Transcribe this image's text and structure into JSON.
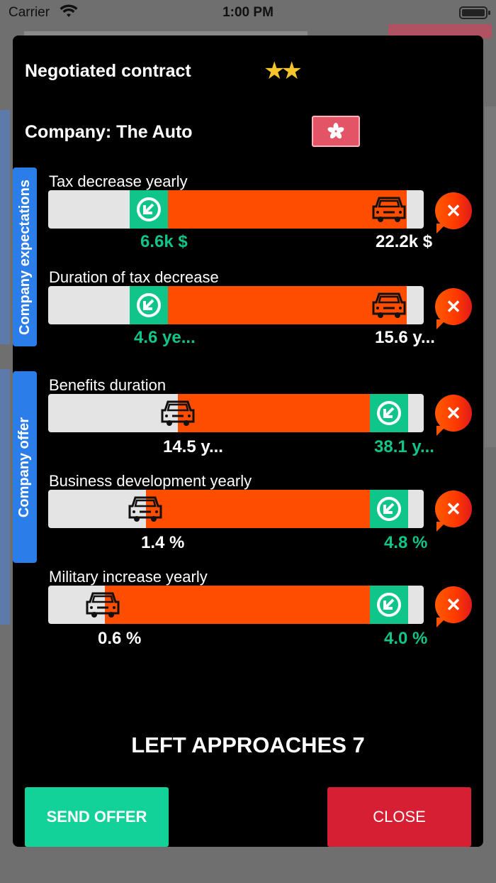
{
  "status_bar": {
    "carrier": "Carrier",
    "time": "1:00 PM"
  },
  "header": {
    "title": "Negotiated contract",
    "stars": "★★",
    "stars_count": 2
  },
  "company": {
    "label": "Company: The Auto",
    "flag": "hong-kong-flag"
  },
  "sections": {
    "expectations": "Company expectations",
    "offer": "Company offer"
  },
  "metrics": [
    {
      "label": "Tax decrease yearly",
      "green_value": "6.6k $",
      "car_value": "22.2k $"
    },
    {
      "label": "Duration of tax decrease",
      "green_value": "4.6 ye...",
      "car_value": "15.6 y..."
    },
    {
      "label": "Benefits duration",
      "car_value": "14.5 y...",
      "green_value": "38.1 y..."
    },
    {
      "label": "Business development yearly",
      "car_value": "1.4 %",
      "green_value": "4.8 %"
    },
    {
      "label": "Military increase yearly",
      "car_value": "0.6 %",
      "green_value": "4.0 %"
    }
  ],
  "approaches": "LEFT APPROACHES 7",
  "buttons": {
    "send": "SEND OFFER",
    "close": "CLOSE"
  },
  "colors": {
    "accent_green": "#10c58a",
    "bar_orange": "#ff4d00",
    "close_red": "#d61f33",
    "tab_blue": "#2b7dea"
  }
}
